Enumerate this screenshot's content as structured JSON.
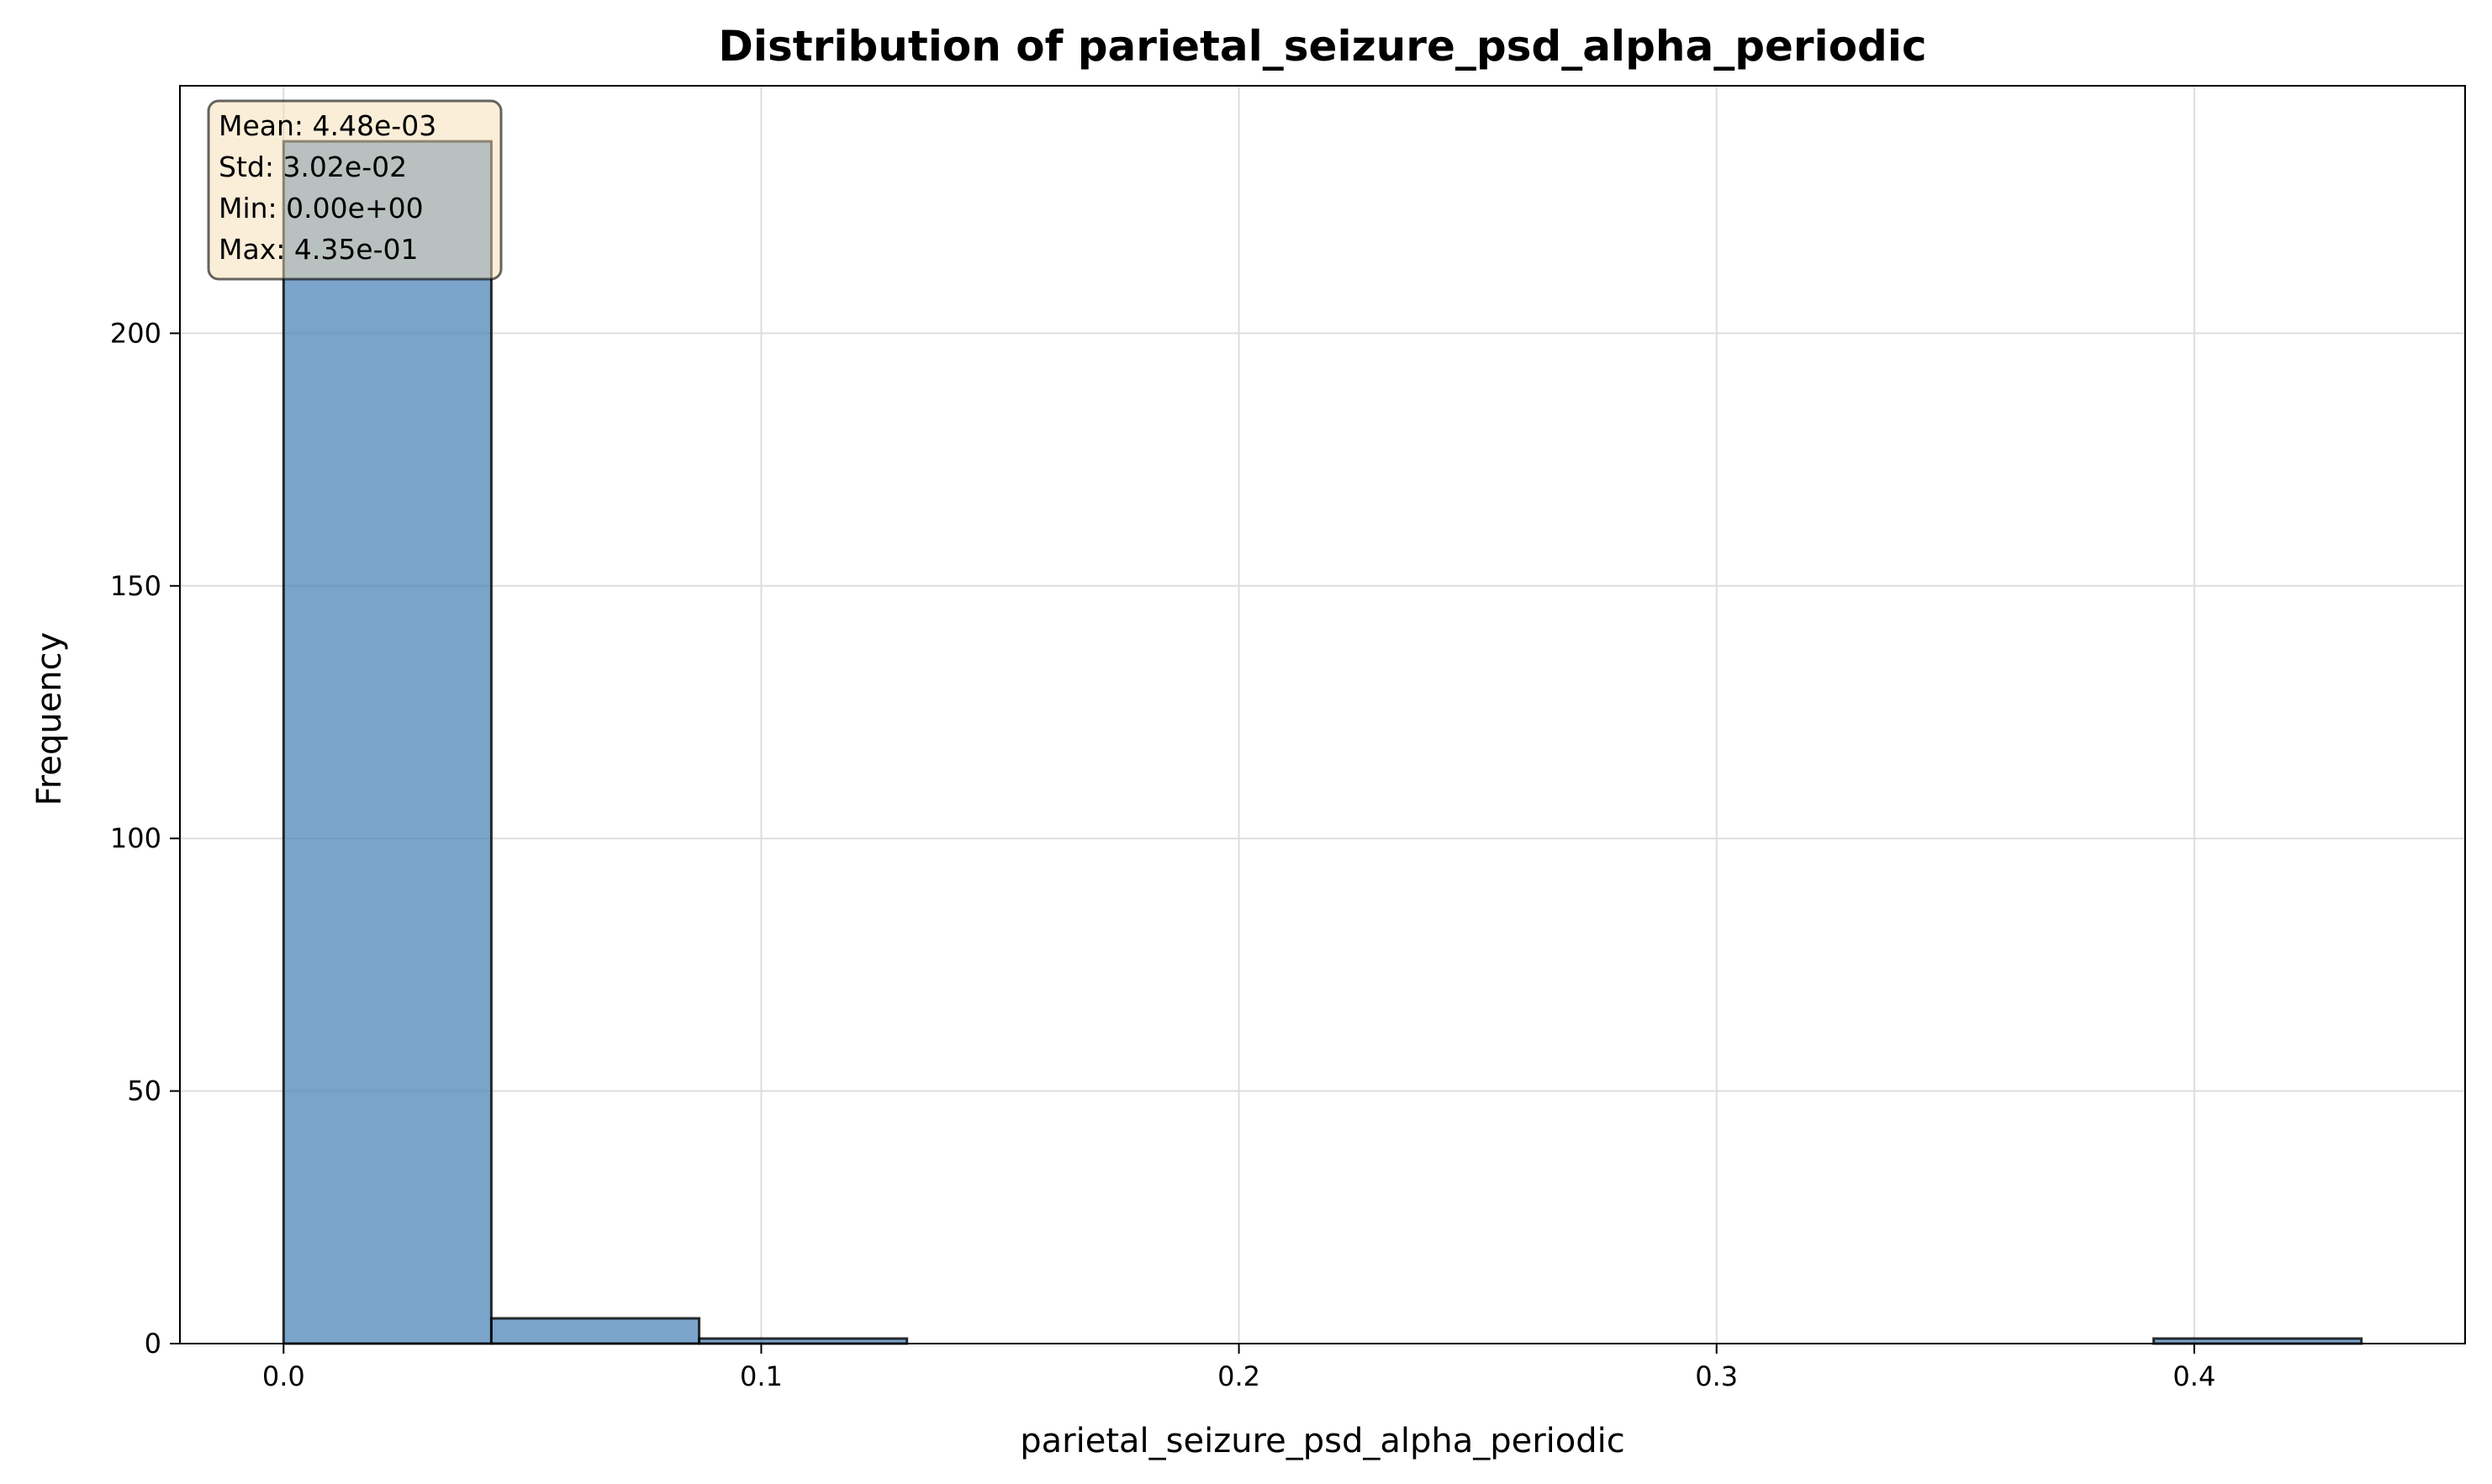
{
  "chart_data": {
    "type": "bar",
    "title": "Distribution of parietal_seizure_psd_alpha_periodic",
    "xlabel": "parietal_seizure_psd_alpha_periodic",
    "ylabel": "Frequency",
    "xlim": [
      -0.0217,
      0.4567
    ],
    "ylim": [
      0,
      249
    ],
    "xticks": [
      0.0,
      0.1,
      0.2,
      0.3,
      0.4
    ],
    "xtick_labels": [
      "0.0",
      "0.1",
      "0.2",
      "0.3",
      "0.4"
    ],
    "yticks": [
      0,
      50,
      100,
      150,
      200
    ],
    "ytick_labels": [
      "0",
      "50",
      "100",
      "150",
      "200"
    ],
    "grid": true,
    "bins": [
      {
        "start": 0.0,
        "end": 0.0435,
        "count": 238
      },
      {
        "start": 0.0435,
        "end": 0.087,
        "count": 5
      },
      {
        "start": 0.087,
        "end": 0.1305,
        "count": 1
      },
      {
        "start": 0.1305,
        "end": 0.174,
        "count": 0
      },
      {
        "start": 0.174,
        "end": 0.2175,
        "count": 0
      },
      {
        "start": 0.2175,
        "end": 0.261,
        "count": 0
      },
      {
        "start": 0.261,
        "end": 0.3045,
        "count": 0
      },
      {
        "start": 0.3045,
        "end": 0.348,
        "count": 0
      },
      {
        "start": 0.348,
        "end": 0.3915,
        "count": 0
      },
      {
        "start": 0.3915,
        "end": 0.435,
        "count": 1
      }
    ],
    "stats": [
      "Mean: 4.48e-03",
      "Std: 3.02e-02",
      "Min: 0.00e+00",
      "Max: 4.35e-01"
    ],
    "stats_placement": "top-left",
    "colors": {
      "bar_fill": "#4f86b8",
      "bar_edge": "#000000",
      "grid": "#dddddd",
      "stats_box_fill": "#f5deb3",
      "stats_box_edge": "#000000"
    }
  }
}
